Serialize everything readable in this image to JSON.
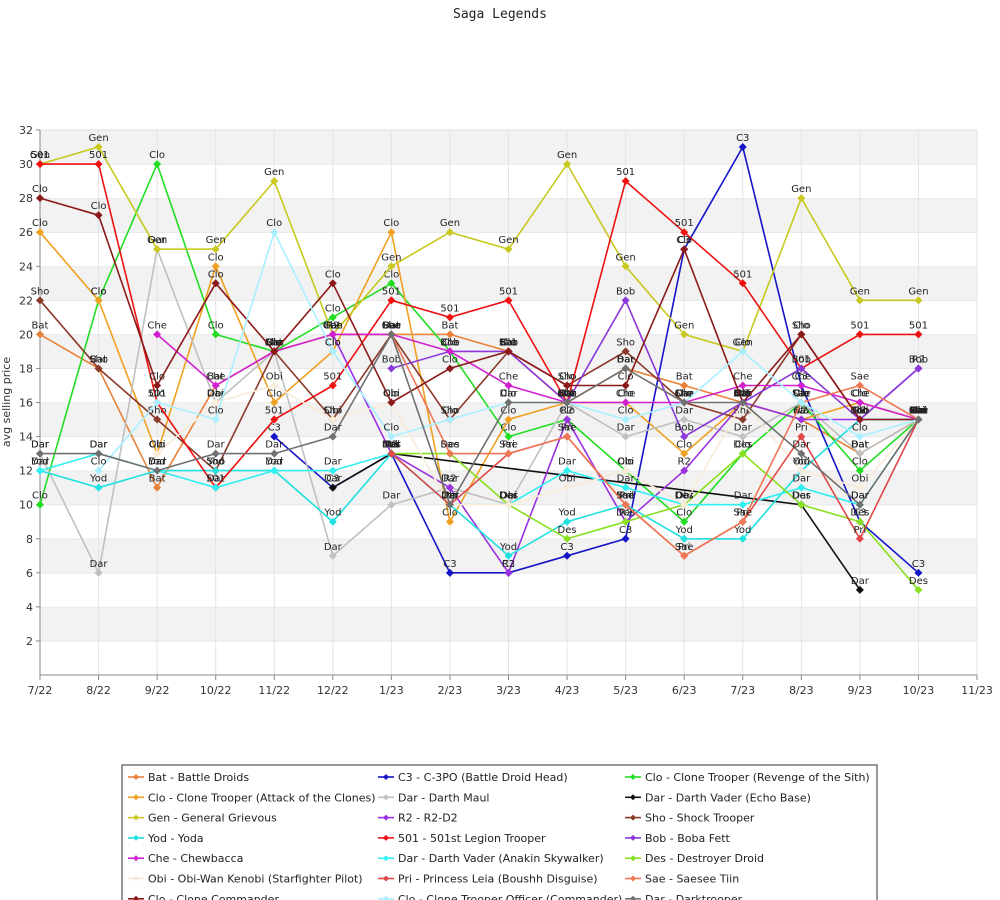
{
  "chart_data": {
    "type": "line",
    "title": "Saga Legends",
    "xlabel": "",
    "ylabel": "avg selling price",
    "x_ticks": [
      "7/22",
      "8/22",
      "9/22",
      "10/22",
      "11/22",
      "12/22",
      "1/23",
      "2/23",
      "3/23",
      "4/23",
      "5/23",
      "6/23",
      "7/23",
      "8/23",
      "9/23",
      "10/23",
      "11/23"
    ],
    "ylim": [
      0,
      32
    ],
    "y_ticks": [
      2,
      4,
      6,
      8,
      10,
      12,
      14,
      16,
      18,
      20,
      22,
      24,
      26,
      28,
      30,
      32
    ],
    "grid": "horizontal-bands",
    "legend_position": "bottom",
    "series": [
      {
        "name": "Bat - Battle Droids",
        "abbr": "Bat",
        "color": "#e8823a",
        "points": [
          [
            0,
            20
          ],
          [
            1,
            18
          ],
          [
            2,
            11
          ],
          [
            3,
            17
          ],
          [
            4,
            19
          ],
          [
            5,
            20
          ],
          [
            6,
            20
          ],
          [
            7,
            20
          ],
          [
            8,
            19
          ],
          [
            9,
            16
          ],
          [
            10,
            18
          ],
          [
            11,
            17
          ],
          [
            12,
            16
          ],
          [
            13,
            15
          ],
          [
            14,
            13
          ],
          [
            15,
            15
          ]
        ]
      },
      {
        "name": "C3 - C-3PO (Battle Droid Head)",
        "abbr": "C3",
        "color": "#1515c8",
        "points": [
          [
            4,
            14
          ],
          [
            5,
            11
          ],
          [
            6,
            13
          ],
          [
            7,
            6
          ],
          [
            8,
            6
          ],
          [
            9,
            7
          ],
          [
            10,
            8
          ],
          [
            11,
            25
          ],
          [
            12,
            31
          ],
          [
            13,
            17
          ],
          [
            14,
            9
          ],
          [
            15,
            6
          ]
        ]
      },
      {
        "name": "Clo - Clone Trooper (Revenge of the Sith)",
        "abbr": "Clo",
        "color": "#22dd22",
        "points": [
          [
            0,
            10
          ],
          [
            1,
            22
          ],
          [
            2,
            30
          ],
          [
            3,
            20
          ],
          [
            4,
            19
          ],
          [
            5,
            21
          ],
          [
            6,
            23
          ],
          [
            7,
            19
          ],
          [
            8,
            14
          ],
          [
            9,
            15
          ],
          [
            10,
            12
          ],
          [
            11,
            9
          ],
          [
            12,
            13
          ],
          [
            13,
            16
          ],
          [
            14,
            12
          ],
          [
            15,
            15
          ]
        ]
      },
      {
        "name": "Clo - Clone Trooper (Attack of the Clones)",
        "abbr": "Clo",
        "color": "#f0a020",
        "points": [
          [
            0,
            26
          ],
          [
            1,
            22
          ],
          [
            2,
            13
          ],
          [
            3,
            24
          ],
          [
            4,
            16
          ],
          [
            5,
            19
          ],
          [
            6,
            26
          ],
          [
            7,
            9
          ],
          [
            8,
            15
          ],
          [
            9,
            16
          ],
          [
            10,
            16
          ],
          [
            11,
            13
          ],
          [
            12,
            16
          ],
          [
            13,
            15
          ],
          [
            14,
            16
          ],
          [
            15,
            15
          ]
        ]
      },
      {
        "name": "Dar - Darth Maul",
        "abbr": "Dar",
        "color": "#c0c0c0",
        "points": [
          [
            0,
            13
          ],
          [
            1,
            6
          ],
          [
            2,
            25
          ],
          [
            3,
            16
          ],
          [
            4,
            19
          ],
          [
            5,
            7
          ],
          [
            6,
            10
          ],
          [
            7,
            11
          ],
          [
            8,
            10
          ],
          [
            9,
            16
          ],
          [
            10,
            14
          ],
          [
            11,
            15
          ],
          [
            12,
            14
          ],
          [
            13,
            16
          ],
          [
            14,
            13
          ],
          [
            15,
            15
          ]
        ]
      },
      {
        "name": "Dar - Darth Vader (Echo Base)",
        "abbr": "Dar",
        "color": "#111111",
        "points": [
          [
            5,
            11
          ],
          [
            6,
            13
          ],
          [
            13,
            10
          ],
          [
            14,
            5
          ]
        ]
      },
      {
        "name": "Gen - General Grievous",
        "abbr": "Gen",
        "color": "#c8c820",
        "points": [
          [
            0,
            30
          ],
          [
            1,
            31
          ],
          [
            2,
            25
          ],
          [
            3,
            25
          ],
          [
            4,
            29
          ],
          [
            5,
            20
          ],
          [
            6,
            24
          ],
          [
            7,
            26
          ],
          [
            8,
            25
          ],
          [
            9,
            30
          ],
          [
            10,
            24
          ],
          [
            11,
            20
          ],
          [
            12,
            19
          ],
          [
            13,
            28
          ],
          [
            14,
            22
          ],
          [
            15,
            22
          ]
        ]
      },
      {
        "name": "R2 - R2-D2",
        "abbr": "R2",
        "color": "#9a30e0",
        "points": [
          [
            5,
            20
          ],
          [
            6,
            13
          ],
          [
            7,
            11
          ],
          [
            8,
            6
          ],
          [
            9,
            15
          ],
          [
            10,
            9
          ],
          [
            11,
            12
          ],
          [
            12,
            16
          ],
          [
            13,
            15
          ],
          [
            14,
            15
          ],
          [
            15,
            18
          ]
        ]
      },
      {
        "name": "Sho - Shock Trooper",
        "abbr": "Sho",
        "color": "#8b3a2a",
        "points": [
          [
            0,
            22
          ],
          [
            1,
            18
          ],
          [
            2,
            15
          ],
          [
            3,
            12
          ],
          [
            4,
            19
          ],
          [
            5,
            15
          ],
          [
            6,
            20
          ],
          [
            7,
            15
          ],
          [
            8,
            19
          ],
          [
            9,
            17
          ],
          [
            10,
            19
          ],
          [
            11,
            16
          ],
          [
            12,
            15
          ],
          [
            13,
            20
          ],
          [
            14,
            15
          ],
          [
            15,
            15
          ]
        ]
      },
      {
        "name": "Yod - Yoda",
        "abbr": "Yod",
        "color": "#20e0e0",
        "points": [
          [
            0,
            12
          ],
          [
            1,
            11
          ],
          [
            2,
            12
          ],
          [
            3,
            12
          ],
          [
            4,
            12
          ],
          [
            5,
            9
          ],
          [
            6,
            13
          ],
          [
            7,
            10
          ],
          [
            8,
            7
          ],
          [
            9,
            9
          ],
          [
            10,
            10
          ],
          [
            11,
            8
          ],
          [
            12,
            8
          ],
          [
            13,
            12
          ],
          [
            14,
            15
          ],
          [
            15,
            15
          ]
        ]
      },
      {
        "name": "501 - 501st Legion Trooper",
        "abbr": "501",
        "color": "#ee1111",
        "points": [
          [
            0,
            30
          ],
          [
            1,
            30
          ],
          [
            2,
            16
          ],
          [
            3,
            11
          ],
          [
            4,
            15
          ],
          [
            5,
            17
          ],
          [
            6,
            22
          ],
          [
            7,
            21
          ],
          [
            8,
            22
          ],
          [
            9,
            16
          ],
          [
            10,
            29
          ],
          [
            11,
            26
          ],
          [
            12,
            23
          ],
          [
            13,
            18
          ],
          [
            14,
            20
          ],
          [
            15,
            20
          ]
        ]
      },
      {
        "name": "Bob - Boba Fett",
        "abbr": "Bob",
        "color": "#8a38d8",
        "points": [
          [
            6,
            18
          ],
          [
            7,
            19
          ],
          [
            8,
            19
          ],
          [
            9,
            16
          ],
          [
            10,
            22
          ],
          [
            11,
            14
          ],
          [
            12,
            16
          ],
          [
            13,
            18
          ],
          [
            14,
            15
          ],
          [
            15,
            18
          ]
        ]
      },
      {
        "name": "Che - Chewbacca",
        "abbr": "Che",
        "color": "#d020d0",
        "points": [
          [
            2,
            20
          ],
          [
            3,
            17
          ],
          [
            4,
            19
          ],
          [
            5,
            20
          ],
          [
            6,
            20
          ],
          [
            7,
            19
          ],
          [
            8,
            17
          ],
          [
            9,
            16
          ],
          [
            10,
            16
          ],
          [
            11,
            16
          ],
          [
            12,
            17
          ],
          [
            13,
            17
          ],
          [
            14,
            16
          ],
          [
            15,
            15
          ]
        ]
      },
      {
        "name": "Dar - Darth Vader (Anakin Skywalker)",
        "abbr": "Dar",
        "color": "#30f0f0",
        "points": [
          [
            0,
            12
          ],
          [
            1,
            13
          ],
          [
            2,
            12
          ],
          [
            3,
            11
          ],
          [
            4,
            12
          ],
          [
            5,
            12
          ],
          [
            6,
            13
          ],
          [
            7,
            10
          ],
          [
            8,
            10
          ],
          [
            9,
            12
          ],
          [
            10,
            11
          ],
          [
            11,
            10
          ],
          [
            12,
            10
          ],
          [
            13,
            11
          ],
          [
            14,
            10
          ],
          [
            15,
            15
          ]
        ]
      },
      {
        "name": "Des - Destroyer Droid",
        "abbr": "Des",
        "color": "#88e020",
        "points": [
          [
            6,
            13
          ],
          [
            7,
            13
          ],
          [
            8,
            10
          ],
          [
            9,
            8
          ],
          [
            10,
            9
          ],
          [
            11,
            10
          ],
          [
            12,
            13
          ],
          [
            13,
            10
          ],
          [
            14,
            9
          ],
          [
            15,
            5
          ]
        ]
      },
      {
        "name": "Obi - Obi-Wan Kenobi (Starfighter Pilot)",
        "abbr": "Obi",
        "color": "#f8ecd8",
        "points": [
          [
            2,
            13
          ],
          [
            3,
            16
          ],
          [
            4,
            17
          ],
          [
            5,
            15
          ],
          [
            6,
            16
          ],
          [
            7,
            10
          ],
          [
            8,
            10
          ],
          [
            9,
            11
          ],
          [
            10,
            12
          ],
          [
            11,
            10
          ],
          [
            12,
            16
          ],
          [
            13,
            12
          ],
          [
            14,
            11
          ],
          [
            15,
            15
          ]
        ]
      },
      {
        "name": "Pri - Princess Leia (Boushh Disguise)",
        "abbr": "Pri",
        "color": "#e04848",
        "points": [
          [
            6,
            13
          ],
          [
            7,
            10
          ],
          [
            8,
            13
          ],
          [
            9,
            14
          ],
          [
            10,
            10
          ],
          [
            11,
            7
          ],
          [
            12,
            9
          ],
          [
            13,
            14
          ],
          [
            14,
            8
          ],
          [
            15,
            15
          ]
        ]
      },
      {
        "name": "Sae - Saesee Tiin",
        "abbr": "Sae",
        "color": "#ee7755",
        "points": [
          [
            6,
            20
          ],
          [
            7,
            13
          ],
          [
            8,
            13
          ],
          [
            9,
            14
          ],
          [
            10,
            10
          ],
          [
            11,
            7
          ],
          [
            12,
            9
          ],
          [
            13,
            16
          ],
          [
            14,
            17
          ],
          [
            15,
            15
          ]
        ]
      },
      {
        "name": "Clo - Clone Commander",
        "abbr": "Clo",
        "color": "#8b1a1a",
        "points": [
          [
            0,
            28
          ],
          [
            1,
            27
          ],
          [
            2,
            17
          ],
          [
            3,
            23
          ],
          [
            4,
            19
          ],
          [
            5,
            23
          ],
          [
            6,
            16
          ],
          [
            7,
            18
          ],
          [
            8,
            19
          ],
          [
            9,
            17
          ],
          [
            10,
            17
          ],
          [
            11,
            25
          ],
          [
            12,
            16
          ],
          [
            13,
            20
          ],
          [
            14,
            15
          ],
          [
            15,
            15
          ]
        ]
      },
      {
        "name": "Clo - Clone Trooper Officer (Commander)",
        "abbr": "Clo",
        "color": "#a8f0ff",
        "points": [
          [
            1,
            12
          ],
          [
            2,
            16
          ],
          [
            3,
            15
          ],
          [
            4,
            26
          ],
          [
            5,
            19
          ],
          [
            6,
            14
          ],
          [
            7,
            15
          ],
          [
            8,
            16
          ],
          [
            9,
            16
          ],
          [
            10,
            15
          ],
          [
            11,
            16
          ],
          [
            12,
            19
          ],
          [
            13,
            16
          ],
          [
            14,
            14
          ],
          [
            15,
            15
          ]
        ]
      },
      {
        "name": "Dar - Darktrooper",
        "abbr": "Dar",
        "color": "#707070",
        "points": [
          [
            0,
            13
          ],
          [
            1,
            13
          ],
          [
            2,
            12
          ],
          [
            3,
            13
          ],
          [
            4,
            13
          ],
          [
            5,
            14
          ],
          [
            6,
            20
          ],
          [
            7,
            10
          ],
          [
            8,
            16
          ],
          [
            9,
            16
          ],
          [
            10,
            18
          ],
          [
            11,
            16
          ],
          [
            12,
            16
          ],
          [
            13,
            13
          ],
          [
            14,
            10
          ],
          [
            15,
            15
          ]
        ]
      }
    ]
  }
}
